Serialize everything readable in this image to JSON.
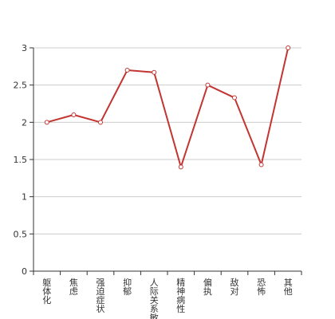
{
  "chart_data": {
    "type": "line",
    "categories": [
      "躯体化",
      "焦虑",
      "强迫症状",
      "抑郁",
      "人际关系敏感",
      "精神病性",
      "偏执",
      "敌对",
      "恐怖",
      "其他"
    ],
    "series": [
      {
        "values": [
          2.0,
          2.1,
          2.0,
          2.7,
          2.67,
          1.4,
          2.5,
          2.33,
          1.43,
          3.0
        ]
      }
    ],
    "y_ticks": [
      "0",
      "0.5",
      "1",
      "1.5",
      "2",
      "2.5",
      "3"
    ],
    "ylim": [
      0,
      3
    ],
    "grid": true,
    "colors": {
      "line": "#c23531",
      "grid": "#cccccc",
      "axis": "#333333"
    }
  }
}
